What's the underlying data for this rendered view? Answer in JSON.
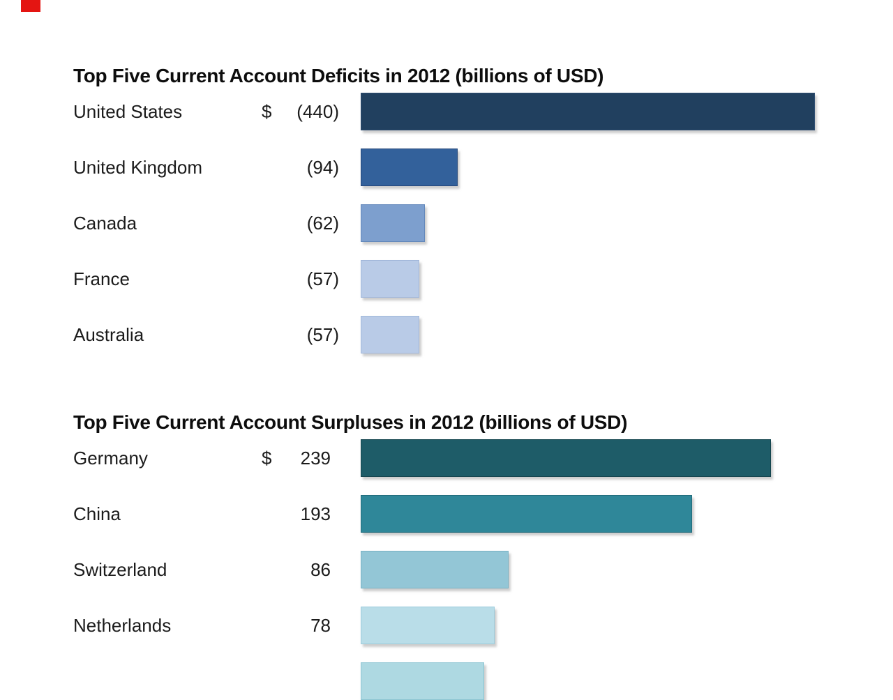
{
  "decorations": {
    "red_marker_color": "#e41512"
  },
  "chart_data": [
    {
      "type": "bar",
      "orientation": "horizontal",
      "title": "Top Five Current Account Deficits in 2012 (billions of USD)",
      "unit": "billions of USD",
      "value_notation": "parentheses indicate deficit (negative) values",
      "xlim": [
        0,
        440
      ],
      "grid": false,
      "legend": false,
      "rows": [
        {
          "label": "United States",
          "prefix": "$",
          "value": 440,
          "display": "(440)",
          "bar_color": "#21405f",
          "bar_border": "#2d4d71"
        },
        {
          "label": "United Kingdom",
          "prefix": "",
          "value": 94,
          "display": "(94)",
          "bar_color": "#33619b",
          "bar_border": "#24477a"
        },
        {
          "label": "Canada",
          "prefix": "",
          "value": 62,
          "display": "(62)",
          "bar_color": "#7d9fce",
          "bar_border": "#6388bb"
        },
        {
          "label": "France",
          "prefix": "",
          "value": 57,
          "display": "(57)",
          "bar_color": "#b9cbe7",
          "bar_border": "#a2b8da"
        },
        {
          "label": "Australia",
          "prefix": "",
          "value": 57,
          "display": "(57)",
          "bar_color": "#b9cbe7",
          "bar_border": "#a2b8da"
        }
      ]
    },
    {
      "type": "bar",
      "orientation": "horizontal",
      "title": "Top Five Current Account Surpluses in 2012 (billions of USD)",
      "unit": "billions of USD",
      "xlim": [
        0,
        239
      ],
      "grid": false,
      "legend": false,
      "rows": [
        {
          "label": "Germany",
          "prefix": "$",
          "value": 239,
          "display": "239",
          "bar_color": "#1e5c68",
          "bar_border": "#16464f"
        },
        {
          "label": "China",
          "prefix": "",
          "value": 193,
          "display": "193",
          "bar_color": "#2f8799",
          "bar_border": "#226c7c"
        },
        {
          "label": "Switzerland",
          "prefix": "",
          "value": 86,
          "display": "86",
          "bar_color": "#93c6d6",
          "bar_border": "#78b2c4"
        },
        {
          "label": "Netherlands",
          "prefix": "",
          "value": 78,
          "display": "78",
          "bar_color": "#b9dde8",
          "bar_border": "#9ccbdc"
        },
        {
          "label": "",
          "prefix": "",
          "value": 72,
          "value_estimated": true,
          "display": "",
          "bar_color": "#aed9e2",
          "bar_border": "#8cc4d2",
          "partially_visible": true
        }
      ]
    }
  ]
}
